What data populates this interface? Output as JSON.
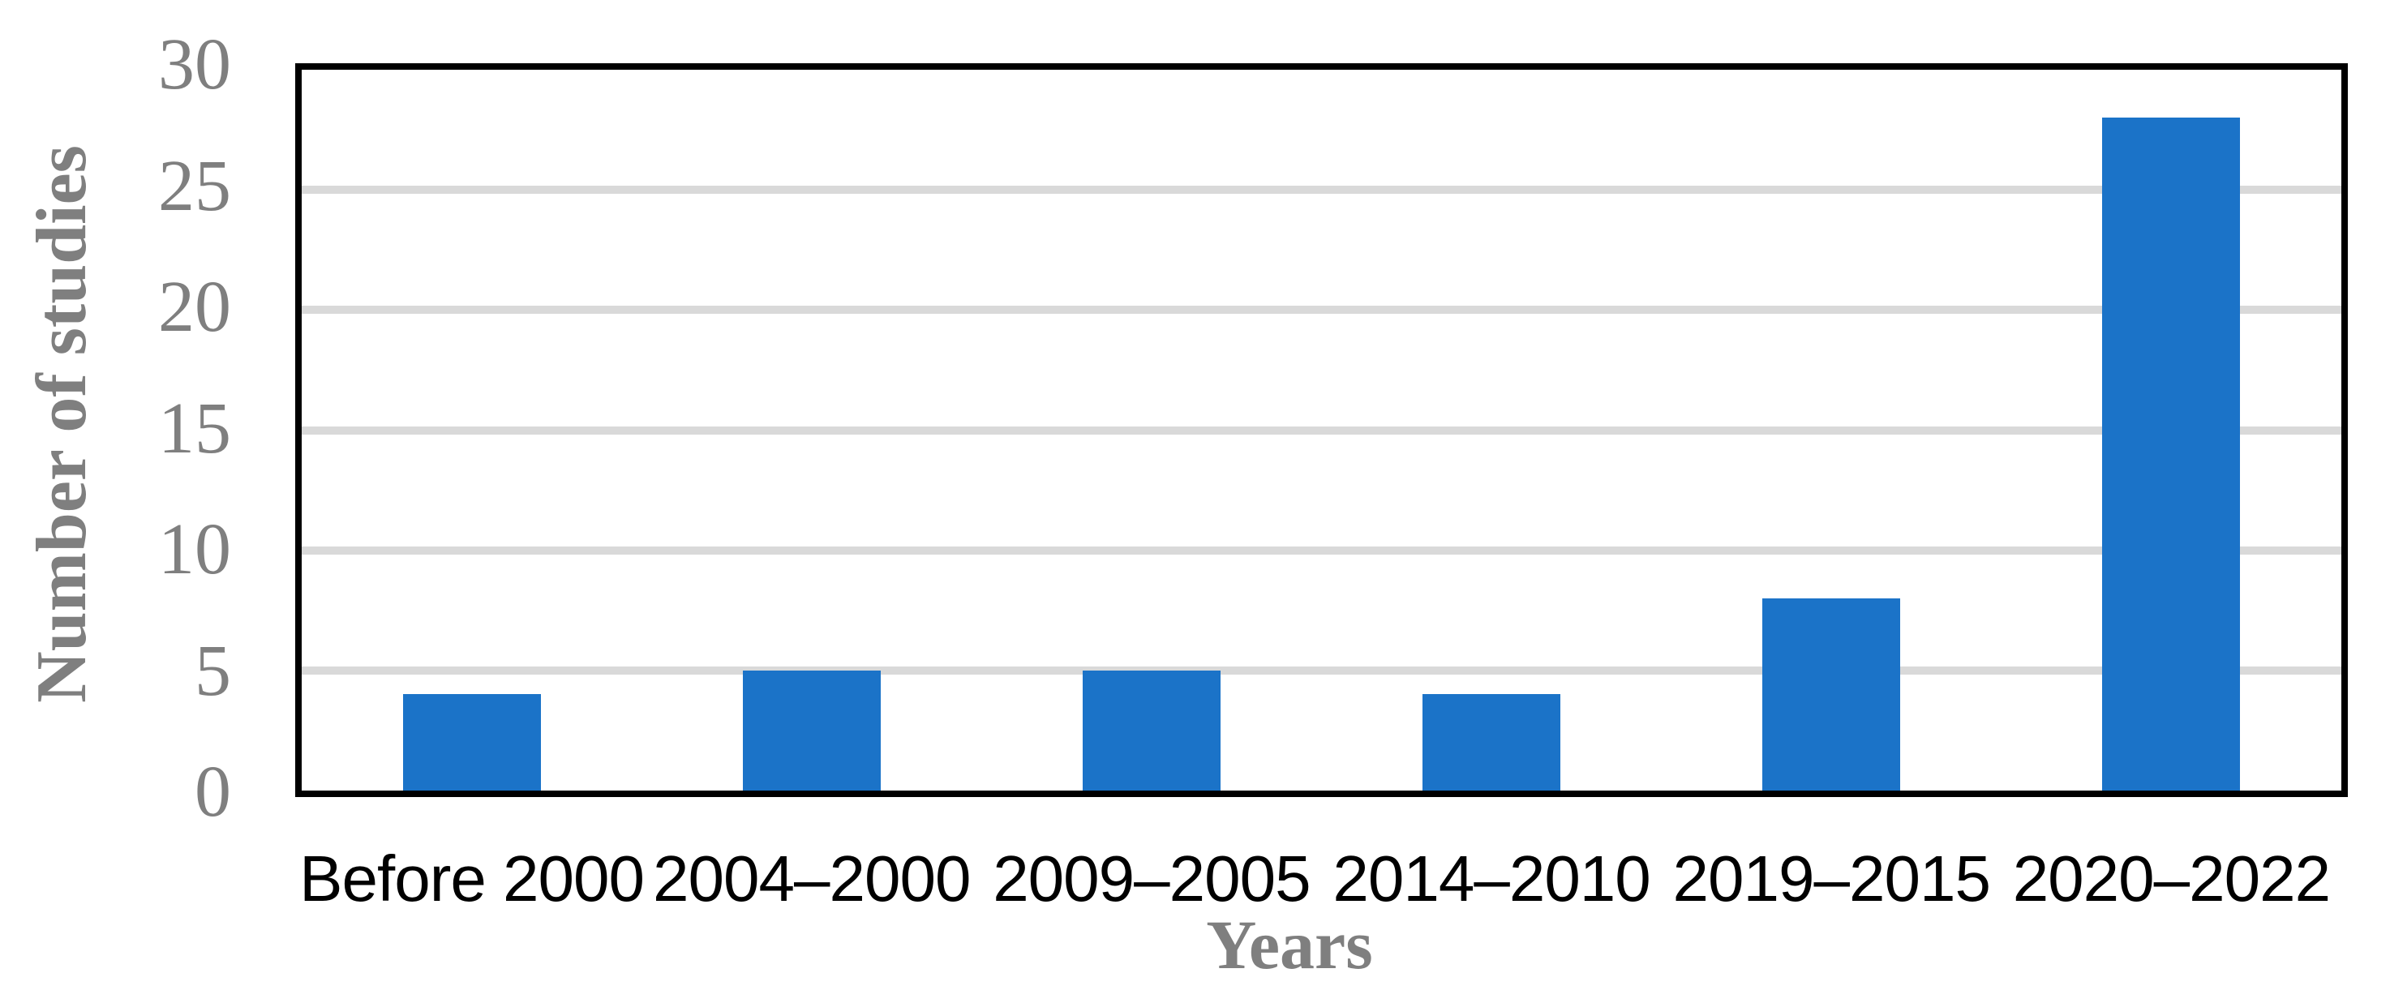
{
  "chart_data": {
    "type": "bar",
    "title": "",
    "categories": [
      "Before 2000",
      "2004–2000",
      "2009–2005",
      "2014–2010",
      "2019–2015",
      "2020–2022"
    ],
    "values": [
      4,
      5,
      5,
      4,
      8,
      28
    ],
    "xlabel": "Years",
    "ylabel": "Number of studies",
    "yticks": [
      0,
      5,
      10,
      15,
      20,
      25,
      30
    ],
    "ylim": [
      0,
      30
    ],
    "grid": "horizontal",
    "legend": "none",
    "colors": {
      "bar": "#1b73c8",
      "gridline": "#d9d9d9",
      "axis_title_text": "#7f7f7f",
      "y_tick_text": "#7f7f7f",
      "x_tick_text": "#000000",
      "plot_border": "#000000",
      "background": "#ffffff"
    }
  }
}
